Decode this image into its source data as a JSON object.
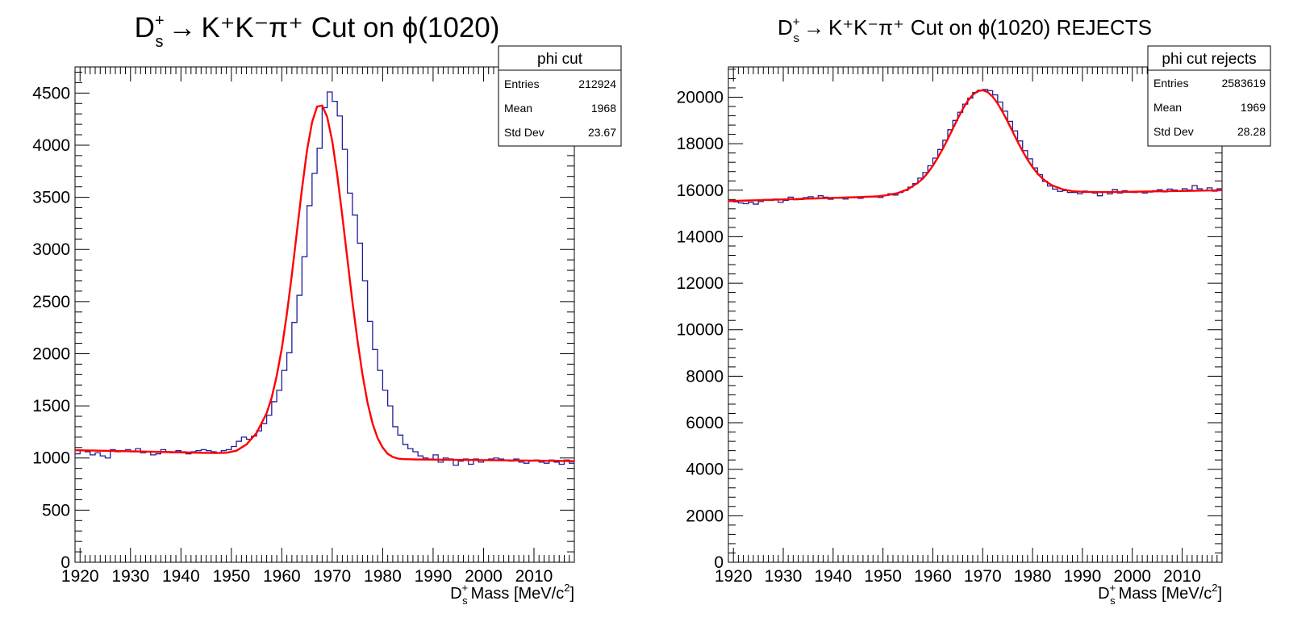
{
  "chart_data": [
    {
      "type": "line",
      "title_parts": {
        "particle": "D",
        "sup": "+",
        "sub": "s",
        "arrow": "→",
        "decay": "K⁺K⁻π⁺",
        "rest": "Cut on ϕ(1020)"
      },
      "xlabel": {
        "particle": "D",
        "sup": "+",
        "sub": "s",
        "text": "Mass [MeV/c",
        "sup2": "2",
        "close": "]"
      },
      "ylabel": "",
      "xlim": [
        1919,
        2018
      ],
      "ylim": [
        0,
        4750
      ],
      "xticks": [
        1920,
        1930,
        1940,
        1950,
        1960,
        1970,
        1980,
        1990,
        2000,
        2010
      ],
      "yticks": [
        0,
        500,
        1000,
        1500,
        2000,
        2500,
        3000,
        3500,
        4000,
        4500
      ],
      "bin_width": 1,
      "hist_color": "#1f1f9a",
      "fit_color": "#ff0000",
      "stats": {
        "name": "phi cut",
        "rows": [
          {
            "label": "Entries",
            "value": "212924"
          },
          {
            "label": "Mean",
            "value": "1968"
          },
          {
            "label": "Std Dev",
            "value": "23.67"
          }
        ]
      },
      "histogram": {
        "x": [
          1919,
          1920,
          1921,
          1922,
          1923,
          1924,
          1925,
          1926,
          1927,
          1928,
          1929,
          1930,
          1931,
          1932,
          1933,
          1934,
          1935,
          1936,
          1937,
          1938,
          1939,
          1940,
          1941,
          1942,
          1943,
          1944,
          1945,
          1946,
          1947,
          1948,
          1949,
          1950,
          1951,
          1952,
          1953,
          1954,
          1955,
          1956,
          1957,
          1958,
          1959,
          1960,
          1961,
          1962,
          1963,
          1964,
          1965,
          1966,
          1967,
          1968,
          1969,
          1970,
          1971,
          1972,
          1973,
          1974,
          1975,
          1976,
          1977,
          1978,
          1979,
          1980,
          1981,
          1982,
          1983,
          1984,
          1985,
          1986,
          1987,
          1988,
          1989,
          1990,
          1991,
          1992,
          1993,
          1994,
          1995,
          1996,
          1997,
          1998,
          1999,
          2000,
          2001,
          2002,
          2003,
          2004,
          2005,
          2006,
          2007,
          2008,
          2009,
          2010,
          2011,
          2012,
          2013,
          2014,
          2015,
          2016,
          2017
        ],
        "y": [
          1040,
          1070,
          1060,
          1030,
          1050,
          1020,
          1000,
          1080,
          1060,
          1070,
          1080,
          1060,
          1090,
          1050,
          1060,
          1030,
          1040,
          1080,
          1060,
          1050,
          1070,
          1060,
          1040,
          1060,
          1070,
          1080,
          1070,
          1060,
          1050,
          1070,
          1080,
          1110,
          1160,
          1200,
          1180,
          1210,
          1260,
          1330,
          1410,
          1540,
          1650,
          1840,
          2010,
          2300,
          2560,
          2930,
          3420,
          3730,
          3970,
          4360,
          4510,
          4420,
          4280,
          3960,
          3540,
          3330,
          3060,
          2700,
          2310,
          2040,
          1840,
          1650,
          1500,
          1300,
          1220,
          1130,
          1090,
          1060,
          1020,
          1000,
          990,
          1030,
          960,
          1000,
          990,
          930,
          970,
          990,
          940,
          990,
          960,
          980,
          990,
          1000,
          990,
          980,
          970,
          990,
          960,
          950,
          970,
          980,
          960,
          950,
          980,
          960,
          940,
          980,
          950
        ]
      },
      "fit": {
        "x": [
          1919,
          1921,
          1923,
          1925,
          1927,
          1929,
          1931,
          1933,
          1935,
          1937,
          1939,
          1941,
          1943,
          1945,
          1947,
          1949,
          1951,
          1953,
          1955,
          1957,
          1958,
          1959,
          1960,
          1961,
          1962,
          1963,
          1964,
          1965,
          1966,
          1967,
          1968,
          1969,
          1970,
          1971,
          1972,
          1973,
          1974,
          1975,
          1976,
          1977,
          1978,
          1979,
          1980,
          1981,
          1982,
          1983,
          1984,
          1985,
          1986,
          1987,
          1989,
          1991,
          1993,
          1995,
          1997,
          1999,
          2001,
          2003,
          2005,
          2007,
          2009,
          2011,
          2013,
          2015,
          2018
        ],
        "y": [
          1075,
          1073,
          1071,
          1069,
          1067,
          1065,
          1063,
          1061,
          1059,
          1057,
          1055,
          1053,
          1051,
          1049,
          1048,
          1050,
          1070,
          1130,
          1240,
          1430,
          1580,
          1790,
          2050,
          2380,
          2760,
          3170,
          3580,
          3950,
          4220,
          4370,
          4380,
          4270,
          4040,
          3710,
          3320,
          2910,
          2500,
          2130,
          1800,
          1530,
          1330,
          1190,
          1100,
          1040,
          1010,
          995,
          990,
          988,
          987,
          986,
          985,
          984,
          983,
          982,
          981,
          980,
          979,
          978,
          977,
          976,
          975,
          974,
          973,
          972,
          970
        ]
      }
    },
    {
      "type": "line",
      "title_parts": {
        "particle": "D",
        "sup": "+",
        "sub": "s",
        "arrow": "→",
        "decay": "K⁺K⁻π⁺",
        "rest": "Cut on ϕ(1020) REJECTS"
      },
      "xlabel": {
        "particle": "D",
        "sup": "+",
        "sub": "s",
        "text": "Mass [MeV/c",
        "sup2": "2",
        "close": "]"
      },
      "ylabel": "",
      "xlim": [
        1919,
        2018
      ],
      "ylim": [
        0,
        21300
      ],
      "xticks": [
        1920,
        1930,
        1940,
        1950,
        1960,
        1970,
        1980,
        1990,
        2000,
        2010
      ],
      "yticks": [
        0,
        2000,
        4000,
        6000,
        8000,
        10000,
        12000,
        14000,
        16000,
        18000,
        20000
      ],
      "bin_width": 1,
      "hist_color": "#1f1f9a",
      "fit_color": "#ff0000",
      "stats": {
        "name": "phi cut rejects",
        "rows": [
          {
            "label": "Entries",
            "value": "2583619"
          },
          {
            "label": "Mean",
            "value": "1969"
          },
          {
            "label": "Std Dev",
            "value": "28.28"
          }
        ]
      },
      "histogram": {
        "x": [
          1919,
          1920,
          1921,
          1922,
          1923,
          1924,
          1925,
          1926,
          1927,
          1928,
          1929,
          1930,
          1931,
          1932,
          1933,
          1934,
          1935,
          1936,
          1937,
          1938,
          1939,
          1940,
          1941,
          1942,
          1943,
          1944,
          1945,
          1946,
          1947,
          1948,
          1949,
          1950,
          1951,
          1952,
          1953,
          1954,
          1955,
          1956,
          1957,
          1958,
          1959,
          1960,
          1961,
          1962,
          1963,
          1964,
          1965,
          1966,
          1967,
          1968,
          1969,
          1970,
          1971,
          1972,
          1973,
          1974,
          1975,
          1976,
          1977,
          1978,
          1979,
          1980,
          1981,
          1982,
          1983,
          1984,
          1985,
          1986,
          1987,
          1988,
          1989,
          1990,
          1991,
          1992,
          1993,
          1994,
          1995,
          1996,
          1997,
          1998,
          1999,
          2000,
          2001,
          2002,
          2003,
          2004,
          2005,
          2006,
          2007,
          2008,
          2009,
          2010,
          2011,
          2012,
          2013,
          2014,
          2015,
          2016,
          2017
        ],
        "y": [
          15550,
          15500,
          15450,
          15420,
          15480,
          15400,
          15510,
          15600,
          15560,
          15620,
          15480,
          15560,
          15700,
          15590,
          15600,
          15680,
          15720,
          15640,
          15760,
          15700,
          15610,
          15690,
          15660,
          15620,
          15700,
          15680,
          15650,
          15730,
          15720,
          15710,
          15690,
          15780,
          15850,
          15790,
          15900,
          15990,
          16130,
          16280,
          16520,
          16760,
          17050,
          17380,
          17750,
          18150,
          18600,
          19000,
          19350,
          19700,
          19960,
          20200,
          20300,
          20330,
          20280,
          20100,
          19790,
          19400,
          18960,
          18550,
          18120,
          17700,
          17350,
          16960,
          16670,
          16380,
          16180,
          16050,
          15950,
          15980,
          15900,
          15900,
          15850,
          15960,
          15920,
          15880,
          15760,
          15920,
          15840,
          16030,
          15880,
          15980,
          15910,
          15900,
          15940,
          15880,
          15920,
          15980,
          16020,
          15930,
          16050,
          16010,
          15960,
          16060,
          16010,
          16200,
          16060,
          16000,
          16100,
          15960,
          16060
        ]
      },
      "fit": {
        "x": [
          1919,
          1922,
          1925,
          1928,
          1931,
          1934,
          1937,
          1940,
          1943,
          1946,
          1949,
          1951,
          1953,
          1955,
          1957,
          1958,
          1959,
          1960,
          1961,
          1962,
          1963,
          1964,
          1965,
          1966,
          1967,
          1968,
          1969,
          1970,
          1971,
          1972,
          1973,
          1974,
          1975,
          1976,
          1977,
          1978,
          1979,
          1980,
          1981,
          1982,
          1983,
          1984,
          1986,
          1988,
          1990,
          1993,
          1996,
          1999,
          2002,
          2005,
          2008,
          2011,
          2014,
          2018
        ],
        "y": [
          15530,
          15550,
          15570,
          15590,
          15610,
          15630,
          15650,
          15670,
          15690,
          15710,
          15740,
          15790,
          15880,
          16040,
          16320,
          16500,
          16750,
          17050,
          17400,
          17780,
          18200,
          18640,
          19080,
          19490,
          19840,
          20100,
          20260,
          20300,
          20220,
          20020,
          19730,
          19360,
          18950,
          18520,
          18090,
          17680,
          17310,
          16990,
          16720,
          16500,
          16330,
          16200,
          16040,
          15960,
          15930,
          15920,
          15920,
          15930,
          15940,
          15950,
          15960,
          15970,
          15980,
          16000
        ]
      }
    }
  ]
}
